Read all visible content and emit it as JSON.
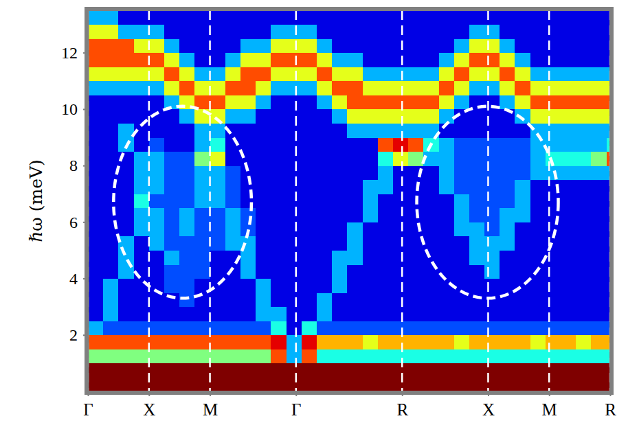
{
  "chart_data": {
    "type": "heatmap",
    "y_label": "ℏω (meV)",
    "xlim": [
      0,
      8.56
    ],
    "xticks": [
      {
        "value": 0,
        "label": "Γ"
      },
      {
        "value": 1,
        "label": "X"
      },
      {
        "value": 2,
        "label": "M"
      },
      {
        "value": 3.41,
        "label": "Γ"
      },
      {
        "value": 5.15,
        "label": "R"
      },
      {
        "value": 6.56,
        "label": "X"
      },
      {
        "value": 7.56,
        "label": "M"
      },
      {
        "value": 8.56,
        "label": "R"
      }
    ],
    "ylim": [
      0,
      13.5
    ],
    "yticks": [
      2,
      4,
      6,
      8,
      10,
      12
    ],
    "grid": "x",
    "zlim": [
      0,
      10
    ],
    "x": [
      0.125,
      0.375,
      0.625,
      0.875,
      1.125,
      1.375,
      1.625,
      1.875,
      2.125,
      2.375,
      2.625,
      2.875,
      3.125,
      3.375,
      3.625,
      3.875,
      4.125,
      4.375,
      4.625,
      4.875,
      5.125,
      5.375,
      5.625,
      5.875,
      6.125,
      6.375,
      6.625,
      6.875,
      7.125,
      7.375,
      7.625,
      7.875,
      8.125,
      8.375,
      8.625
    ],
    "y": [
      0.25,
      0.75,
      1.25,
      1.75,
      2.25,
      2.75,
      3.25,
      3.75,
      4.25,
      4.75,
      5.25,
      5.75,
      6.25,
      6.75,
      7.25,
      7.75,
      8.25,
      8.75,
      9.25,
      9.75,
      10.25,
      10.75,
      11.25,
      11.75,
      12.25,
      12.75,
      13.25
    ],
    "z": [
      [
        10,
        10,
        10,
        10,
        10,
        10,
        10,
        10,
        10,
        10,
        10,
        10,
        10,
        10,
        10,
        10,
        10,
        10,
        10,
        10,
        10,
        10,
        10,
        10,
        10,
        10,
        10,
        10,
        10,
        10,
        10,
        10,
        10,
        10,
        10
      ],
      [
        10,
        10,
        10,
        10,
        10,
        10,
        10,
        10,
        10,
        10,
        10,
        10,
        10,
        10,
        10,
        10,
        10,
        10,
        10,
        10,
        10,
        10,
        10,
        10,
        10,
        10,
        10,
        10,
        10,
        10,
        10,
        10,
        10,
        10,
        10
      ],
      [
        5,
        5,
        5,
        5,
        5,
        5,
        5,
        5,
        5,
        5,
        5,
        5,
        8,
        3,
        8,
        4,
        4,
        4,
        4,
        4,
        4,
        4,
        4,
        4,
        4,
        4,
        4,
        4,
        4,
        4,
        4,
        4,
        4,
        4,
        4
      ],
      [
        8,
        8,
        8,
        8,
        8,
        8,
        8,
        8,
        8,
        8,
        8,
        8,
        9,
        3,
        9,
        7,
        7,
        7,
        6,
        7,
        7,
        7,
        7,
        7,
        6,
        7,
        7,
        7,
        7,
        6,
        7,
        7,
        6,
        7,
        7
      ],
      [
        3,
        2,
        2,
        2,
        2,
        2,
        2,
        2,
        2,
        2,
        2,
        2,
        4,
        1,
        4,
        2,
        2,
        2,
        2,
        2,
        2,
        2,
        2,
        2,
        2,
        2,
        2,
        2,
        2,
        2,
        2,
        2,
        2,
        2,
        2
      ],
      [
        1,
        3,
        1,
        1,
        1,
        1,
        1,
        1,
        1,
        1,
        1,
        3,
        3,
        1,
        1,
        3,
        1,
        1,
        1,
        1,
        1,
        1,
        1,
        1,
        1,
        1,
        1,
        1,
        1,
        1,
        1,
        1,
        1,
        1,
        1
      ],
      [
        1,
        3,
        1,
        1,
        1,
        1,
        2,
        1,
        1,
        1,
        1,
        3,
        1,
        1,
        1,
        3,
        1,
        1,
        1,
        1,
        1,
        1,
        1,
        1,
        1,
        1,
        1,
        1,
        1,
        1,
        1,
        1,
        1,
        1,
        1
      ],
      [
        1,
        3,
        1,
        1,
        1,
        2,
        2,
        1,
        1,
        1,
        1,
        3,
        1,
        1,
        1,
        1,
        3,
        1,
        1,
        1,
        1,
        1,
        1,
        1,
        1,
        1,
        1,
        1,
        1,
        1,
        1,
        1,
        1,
        1,
        1
      ],
      [
        1,
        1,
        3,
        1,
        1,
        2,
        2,
        2,
        1,
        1,
        3,
        1,
        1,
        1,
        1,
        1,
        3,
        1,
        1,
        1,
        1,
        1,
        1,
        1,
        1,
        1,
        3,
        1,
        1,
        1,
        1,
        1,
        1,
        1,
        1
      ],
      [
        1,
        1,
        3,
        1,
        1,
        3,
        2,
        2,
        1,
        1,
        3,
        1,
        1,
        1,
        1,
        1,
        3,
        3,
        1,
        1,
        1,
        1,
        1,
        1,
        1,
        3,
        3,
        1,
        1,
        1,
        1,
        1,
        1,
        1,
        1
      ],
      [
        1,
        1,
        3,
        1,
        3,
        2,
        2,
        2,
        2,
        3,
        3,
        1,
        1,
        1,
        1,
        1,
        1,
        3,
        1,
        1,
        1,
        1,
        1,
        1,
        1,
        3,
        3,
        3,
        1,
        1,
        1,
        1,
        1,
        1,
        1
      ],
      [
        1,
        1,
        1,
        3,
        3,
        2,
        3,
        2,
        2,
        3,
        2,
        1,
        1,
        1,
        1,
        1,
        1,
        3,
        1,
        1,
        1,
        1,
        1,
        1,
        3,
        3,
        2,
        3,
        1,
        1,
        1,
        1,
        1,
        1,
        1
      ],
      [
        1,
        1,
        1,
        3,
        3,
        2,
        3,
        2,
        2,
        3,
        2,
        1,
        1,
        1,
        1,
        1,
        1,
        1,
        3,
        1,
        1,
        1,
        1,
        1,
        3,
        2,
        2,
        3,
        3,
        1,
        1,
        1,
        1,
        1,
        1
      ],
      [
        1,
        1,
        1,
        4,
        2,
        2,
        2,
        3,
        3,
        2,
        1,
        1,
        1,
        1,
        1,
        1,
        1,
        1,
        3,
        1,
        1,
        1,
        1,
        1,
        3,
        2,
        2,
        2,
        3,
        1,
        1,
        1,
        1,
        1,
        1
      ],
      [
        1,
        1,
        1,
        3,
        3,
        2,
        2,
        3,
        3,
        2,
        1,
        1,
        1,
        1,
        1,
        1,
        1,
        1,
        3,
        3,
        1,
        1,
        1,
        3,
        2,
        2,
        2,
        2,
        3,
        1,
        1,
        1,
        1,
        1,
        1
      ],
      [
        1,
        1,
        1,
        3,
        3,
        2,
        2,
        3,
        3,
        2,
        1,
        1,
        1,
        1,
        1,
        1,
        1,
        1,
        1,
        3,
        1,
        1,
        1,
        3,
        2,
        2,
        2,
        2,
        2,
        3,
        3,
        3,
        3,
        3,
        3
      ],
      [
        1,
        1,
        1,
        3,
        3,
        2,
        2,
        5,
        6,
        1,
        1,
        1,
        1,
        1,
        1,
        1,
        1,
        1,
        1,
        4,
        6,
        5,
        3,
        3,
        2,
        2,
        2,
        2,
        2,
        3,
        4,
        4,
        4,
        5,
        8
      ],
      [
        1,
        1,
        3,
        1,
        2,
        1,
        1,
        3,
        4,
        1,
        1,
        1,
        1,
        1,
        1,
        1,
        1,
        1,
        1,
        8,
        9,
        8,
        4,
        3,
        2,
        2,
        2,
        2,
        2,
        3,
        3,
        3,
        3,
        3,
        4
      ],
      [
        1,
        1,
        3,
        1,
        1,
        1,
        1,
        3,
        3,
        1,
        1,
        1,
        1,
        1,
        1,
        1,
        1,
        3,
        3,
        3,
        3,
        3,
        3,
        1,
        1,
        1,
        1,
        1,
        1,
        3,
        3,
        3,
        3,
        3,
        3
      ],
      [
        1,
        1,
        1,
        1,
        1,
        1,
        3,
        6,
        6,
        3,
        3,
        1,
        1,
        1,
        1,
        1,
        3,
        6,
        6,
        6,
        6,
        6,
        6,
        3,
        1,
        1,
        1,
        1,
        3,
        6,
        6,
        6,
        6,
        6,
        6
      ],
      [
        1,
        1,
        1,
        1,
        1,
        3,
        6,
        8,
        8,
        6,
        6,
        3,
        1,
        1,
        1,
        3,
        6,
        8,
        8,
        8,
        8,
        8,
        8,
        6,
        3,
        1,
        1,
        3,
        6,
        8,
        8,
        8,
        8,
        8,
        8
      ],
      [
        3,
        3,
        3,
        3,
        3,
        6,
        8,
        6,
        6,
        8,
        8,
        6,
        3,
        3,
        3,
        6,
        8,
        8,
        6,
        6,
        6,
        6,
        6,
        8,
        6,
        3,
        3,
        6,
        8,
        6,
        6,
        6,
        6,
        6,
        6
      ],
      [
        6,
        6,
        6,
        6,
        6,
        8,
        6,
        3,
        3,
        6,
        8,
        8,
        6,
        6,
        6,
        8,
        6,
        6,
        3,
        3,
        3,
        3,
        3,
        6,
        8,
        6,
        6,
        8,
        6,
        3,
        3,
        3,
        3,
        3,
        3
      ],
      [
        8,
        8,
        8,
        8,
        8,
        6,
        3,
        1,
        1,
        3,
        6,
        6,
        8,
        8,
        8,
        6,
        3,
        3,
        1,
        1,
        1,
        1,
        1,
        3,
        6,
        8,
        8,
        6,
        3,
        1,
        1,
        1,
        1,
        1,
        1
      ],
      [
        8,
        8,
        8,
        6,
        6,
        3,
        1,
        1,
        1,
        1,
        3,
        3,
        6,
        6,
        6,
        3,
        1,
        1,
        1,
        1,
        1,
        1,
        1,
        1,
        3,
        6,
        6,
        3,
        1,
        1,
        1,
        1,
        1,
        1,
        1
      ],
      [
        6,
        6,
        3,
        3,
        3,
        1,
        1,
        1,
        1,
        1,
        1,
        1,
        3,
        3,
        3,
        1,
        1,
        1,
        1,
        1,
        1,
        1,
        1,
        1,
        1,
        3,
        3,
        1,
        1,
        1,
        1,
        1,
        1,
        1,
        1
      ],
      [
        3,
        3,
        1,
        1,
        1,
        1,
        1,
        1,
        1,
        1,
        1,
        1,
        1,
        1,
        1,
        1,
        1,
        1,
        1,
        1,
        1,
        1,
        1,
        1,
        1,
        1,
        1,
        1,
        1,
        1,
        1,
        1,
        1,
        1,
        1
      ]
    ],
    "ellipses": [
      {
        "x": 1.55,
        "y": 6.7,
        "rx": 1.13,
        "ry": 3.4
      },
      {
        "x": 6.55,
        "y": 6.7,
        "rx": 1.16,
        "ry": 3.4
      }
    ]
  }
}
